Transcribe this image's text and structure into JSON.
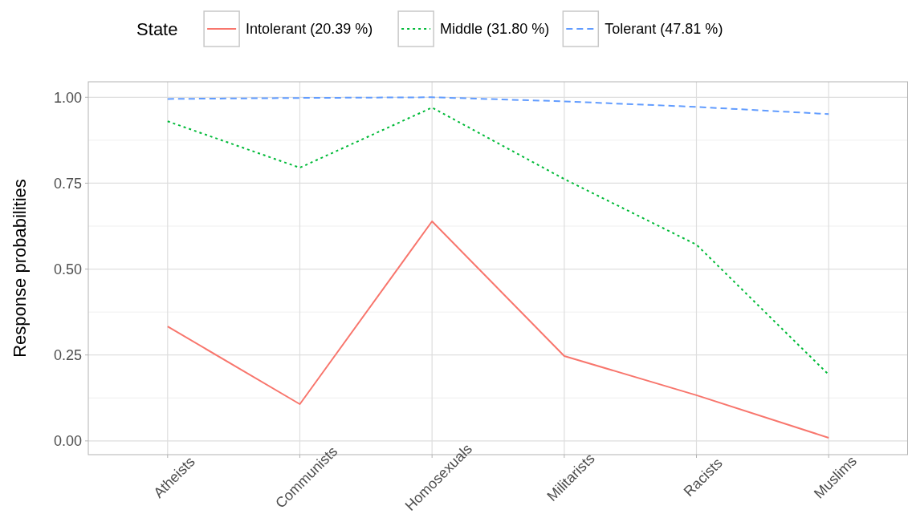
{
  "chart_data": {
    "type": "line",
    "ylabel": "Response probabilities",
    "legend_title": "State",
    "legend": "top",
    "grid": true,
    "categories": [
      "Atheists",
      "Communists",
      "Homosexuals",
      "Militarists",
      "Racists",
      "Muslims"
    ],
    "ylim": [
      -0.04,
      1.045
    ],
    "yticks": [
      {
        "value": 0,
        "label": "0.00"
      },
      {
        "value": 0.25,
        "label": "0.25"
      },
      {
        "value": 0.5,
        "label": "0.50"
      },
      {
        "value": 0.75,
        "label": "0.75"
      },
      {
        "value": 1,
        "label": "1.00"
      }
    ],
    "series": [
      {
        "name": "Intolerant (20.39 %)",
        "color": "#f8766d",
        "line_style": "solid",
        "values": [
          0.333,
          0.107,
          0.639,
          0.247,
          0.133,
          0.009
        ]
      },
      {
        "name": "Middle (31.80 %)",
        "color": "#00ba38",
        "line_style": "dotted",
        "values": [
          0.93,
          0.795,
          0.97,
          0.762,
          0.571,
          0.193
        ]
      },
      {
        "name": "Tolerant (47.81 %)",
        "color": "#619cff",
        "line_style": "dashed",
        "values": [
          0.995,
          0.998,
          1.0,
          0.988,
          0.972,
          0.951
        ]
      }
    ]
  }
}
